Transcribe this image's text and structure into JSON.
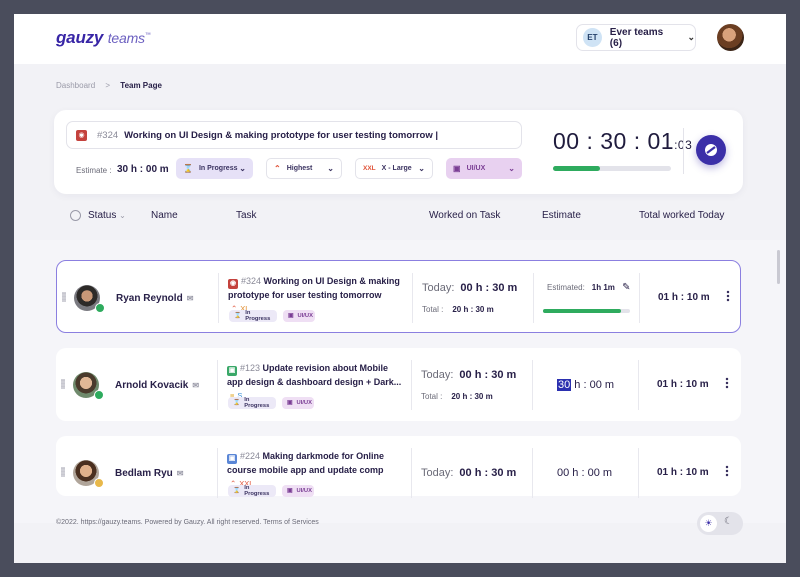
{
  "header": {
    "logo_main": "gauzy",
    "logo_sub": "teams",
    "logo_tm": "™",
    "team_initials": "ET",
    "team_name": "Ever teams (6)"
  },
  "breadcrumb": {
    "parent": "Dashboard",
    "current": "Team Page"
  },
  "current_task": {
    "number": "#324",
    "title": "Working on UI Design & making prototype for user testing tomorrow |",
    "estimate_label": "Estimate :",
    "estimate_value": "30 h : 00 m",
    "status": "In Progress",
    "priority": "Highest",
    "size_code": "XXL",
    "size": "X - Large",
    "label": "UI/UX",
    "timer": "00 : 30 : 01",
    "timer_ms": ":03",
    "timer_progress": 0.4
  },
  "table_headers": {
    "status": "Status",
    "name": "Name",
    "task": "Task",
    "worked_on_task": "Worked on Task",
    "estimate": "Estimate",
    "total_worked_today": "Total worked Today"
  },
  "members": [
    {
      "name": "Ryan Reynold",
      "task_number": "#324",
      "task_title": "Working on UI Design & making prototype for user testing tomorrow",
      "task_extra": "XL",
      "task_icon_color": "#c4423d",
      "status": "In Progress",
      "label": "UI/UX",
      "today_label": "Today:",
      "today": "00 h : 30 m",
      "total_label": "Total :",
      "total": "20 h : 30 m",
      "estimated_label": "Estimated:",
      "estimated": "1h 1m",
      "estimate_progress": 0.9,
      "worked_today": "01 h : 10 m"
    },
    {
      "name": "Arnold Kovacik",
      "task_number": "#123",
      "task_title": "Update revision about Mobile app design & dashboard design + Dark...",
      "task_extra": "S",
      "task_icon_color": "#3aa868",
      "status": "In Progress",
      "label": "UI/UX",
      "today_label": "Today:",
      "today": "00 h : 30 m",
      "total_label": "Total :",
      "total": "20 h : 30 m",
      "estimate_h": "30",
      "estimate_rest": " h : 00 m",
      "worked_today": "01 h : 10 m"
    },
    {
      "name": "Bedlam Ryu",
      "task_number": "#224",
      "task_title": "Making darkmode for Online course mobile app and update comp",
      "task_extra": "XXL",
      "task_icon_color": "#5a86d6",
      "status": "In Progress",
      "label": "UI/UX",
      "today_label": "Today:",
      "today": "00 h : 30 m",
      "estimate_h": "00",
      "estimate_rest": " h : 00 m",
      "worked_today": "01 h : 10 m"
    }
  ],
  "footer": "©2022. https://gauzy.teams. Powered by Gauzy. All right reserved. Terms of Services",
  "colors": {
    "accent": "#3b2fa8",
    "progress": "#2eab5e",
    "active_border": "#8b7fe0"
  }
}
